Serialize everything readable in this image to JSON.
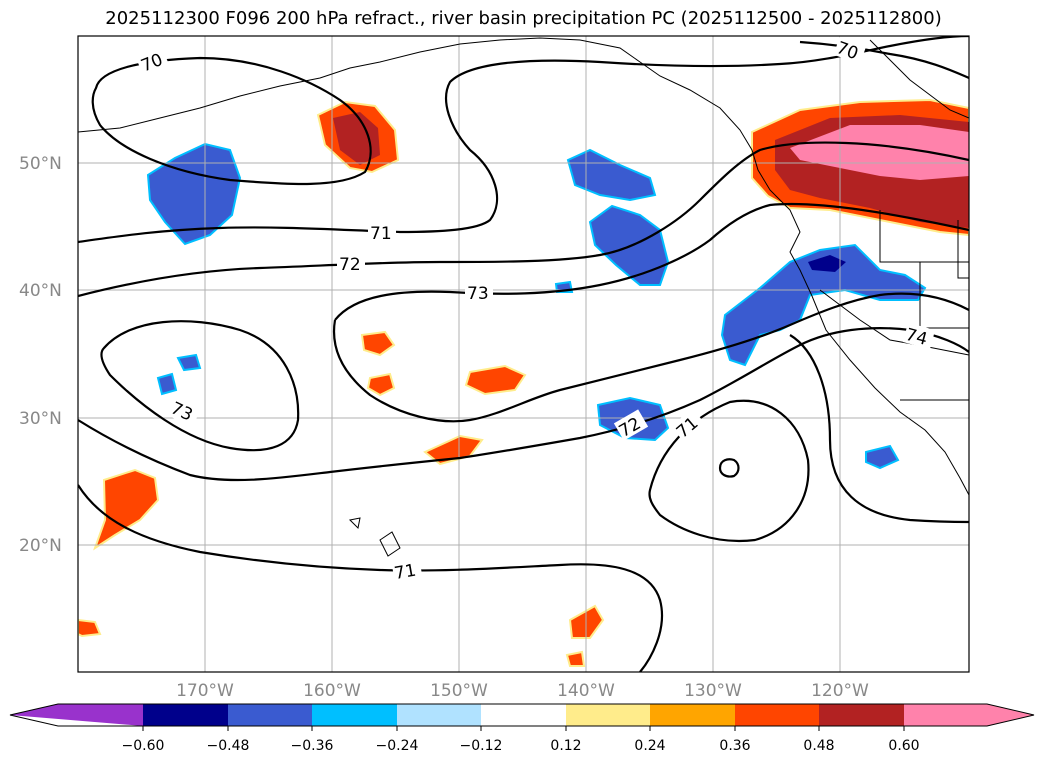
{
  "title": "2025112300 F096 200 hPa refract., river basin precipitation PC (2025112500 - 2025112800)",
  "latitude_labels": [
    "50°N",
    "40°N",
    "30°N",
    "20°N"
  ],
  "longitude_labels": [
    "170°W",
    "160°W",
    "150°W",
    "140°W",
    "130°W",
    "120°W"
  ],
  "contour_labels": [
    "70",
    "70",
    "71",
    "72",
    "73",
    "73",
    "72",
    "71",
    "71",
    "74"
  ],
  "colorbar": {
    "ticks": [
      "−0.60",
      "−0.48",
      "−0.36",
      "−0.24",
      "−0.12",
      "0.12",
      "0.24",
      "0.36",
      "0.48",
      "0.60"
    ],
    "colors": [
      "#9932cc",
      "#00008b",
      "#3a5bd0",
      "#00bfff",
      "#b0e2ff",
      "#ffffff",
      "#ffec8b",
      "#ffa500",
      "#ff4500",
      "#b22222",
      "#ff82ab"
    ]
  },
  "colors": {
    "grid": "#b0b0b0",
    "contour": "#000000",
    "axis_label": "#888888"
  }
}
